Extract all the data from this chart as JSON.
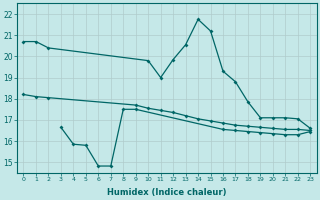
{
  "xlabel": "Humidex (Indice chaleur)",
  "bg_color": "#c5e8e8",
  "line_color": "#006666",
  "grid_color": "#b0cccc",
  "ylim": [
    14.5,
    22.5
  ],
  "xlim": [
    -0.5,
    23.5
  ],
  "yticks": [
    15,
    16,
    17,
    18,
    19,
    20,
    21,
    22
  ],
  "xticks": [
    0,
    1,
    2,
    3,
    4,
    5,
    6,
    7,
    8,
    9,
    10,
    11,
    12,
    13,
    14,
    15,
    16,
    17,
    18,
    19,
    20,
    21,
    22,
    23
  ],
  "series1_x": [
    0,
    1,
    2,
    10,
    11,
    12,
    13,
    14,
    15,
    16,
    17,
    18,
    19,
    20,
    21,
    22,
    23
  ],
  "series1_y": [
    20.7,
    20.7,
    20.4,
    19.8,
    19.0,
    19.85,
    20.55,
    21.75,
    21.2,
    19.3,
    18.8,
    17.85,
    17.1,
    17.1,
    17.1,
    17.05,
    16.6
  ],
  "series2_x": [
    0,
    1,
    2,
    9,
    10,
    11,
    12,
    13,
    14,
    15,
    16,
    17,
    18,
    19,
    20,
    21,
    22,
    23
  ],
  "series2_y": [
    18.2,
    18.1,
    18.05,
    17.7,
    17.55,
    17.45,
    17.35,
    17.2,
    17.05,
    16.95,
    16.85,
    16.75,
    16.7,
    16.65,
    16.6,
    16.55,
    16.55,
    16.5
  ],
  "series3_x": [
    3,
    4,
    5,
    6,
    7,
    8,
    9,
    16,
    17,
    18,
    19,
    20,
    21,
    22,
    23
  ],
  "series3_y": [
    16.65,
    15.85,
    15.8,
    14.82,
    14.82,
    17.5,
    17.5,
    16.55,
    16.5,
    16.45,
    16.4,
    16.35,
    16.3,
    16.3,
    16.45
  ]
}
